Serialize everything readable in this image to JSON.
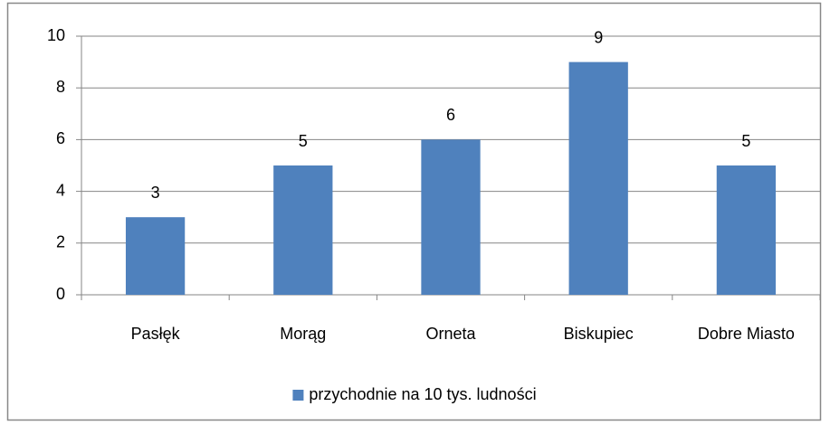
{
  "chart_data": {
    "type": "bar",
    "categories": [
      "Pasłęk",
      "Morąg",
      "Orneta",
      "Biskupiec",
      "Dobre Miasto"
    ],
    "series": [
      {
        "name": "przychodnie na 10 tys. ludności",
        "color": "#4f81bd",
        "values": [
          3,
          5,
          6,
          9,
          5
        ]
      }
    ],
    "ylim": [
      0,
      10
    ],
    "yticks": [
      0,
      2,
      4,
      6,
      8,
      10
    ],
    "grid": true,
    "legend": "bottom",
    "data_labels": true
  }
}
